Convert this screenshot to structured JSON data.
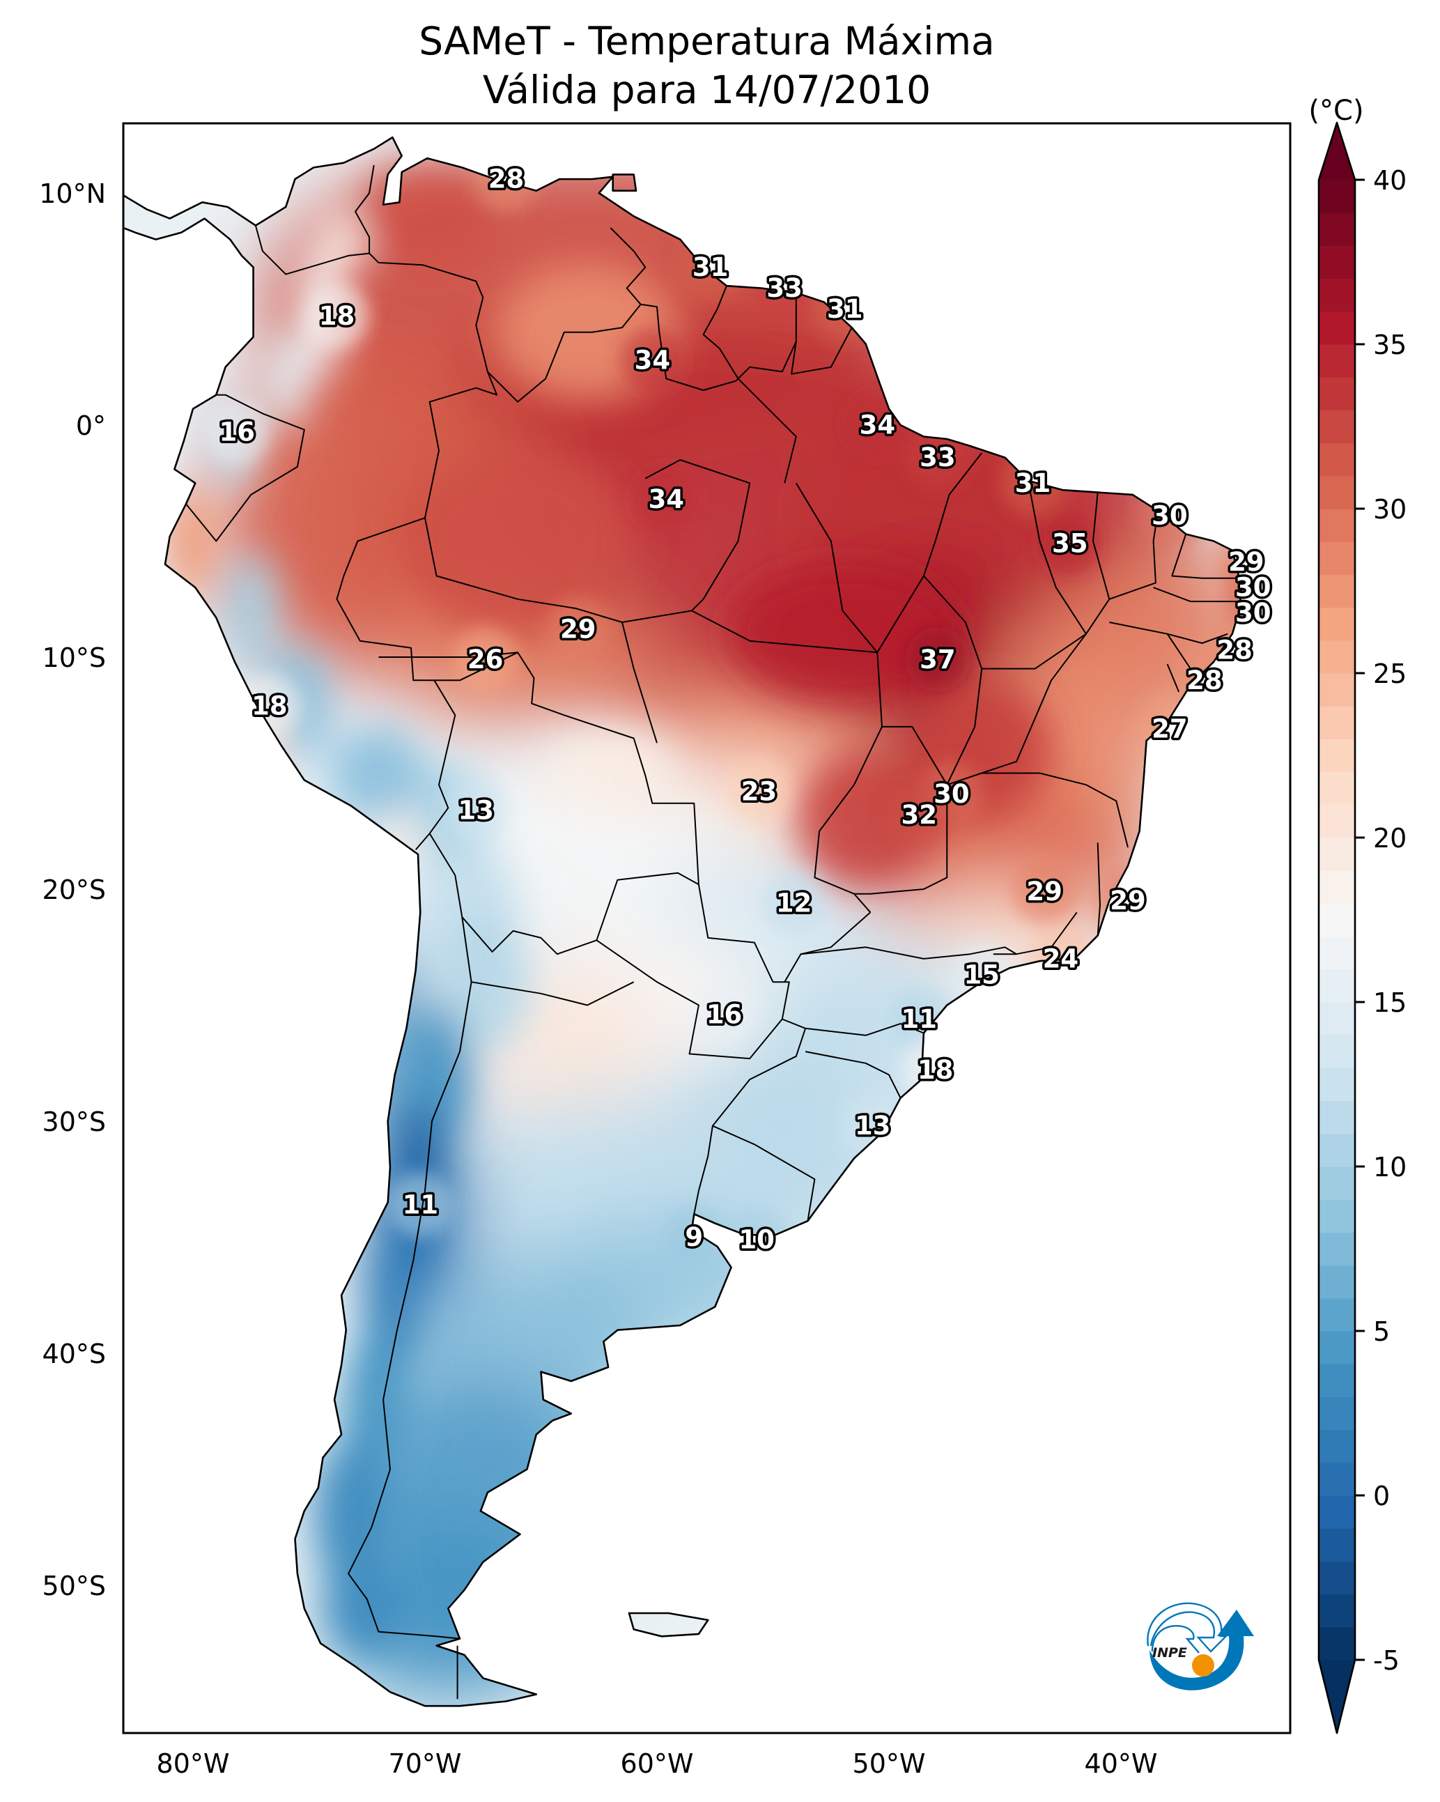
{
  "title": {
    "line1": "SAMeT - Temperatura Máxima",
    "line2": "Válida para 14/07/2010"
  },
  "chart_data": {
    "type": "heatmap",
    "title": "SAMeT - Temperatura Máxima",
    "subtitle": "Válida para 14/07/2010",
    "variable": "Temperatura Máxima",
    "units": "(°C)",
    "xlabel": "",
    "ylabel": "",
    "xlim_lon": [
      -83,
      -32.7
    ],
    "ylim_lat": [
      -56.4,
      13
    ],
    "x_ticks": [
      {
        "value": -80,
        "label": "80°W"
      },
      {
        "value": -70,
        "label": "70°W"
      },
      {
        "value": -60,
        "label": "60°W"
      },
      {
        "value": -50,
        "label": "50°W"
      },
      {
        "value": -40,
        "label": "40°W"
      }
    ],
    "y_ticks": [
      {
        "value": 10,
        "label": "10°N"
      },
      {
        "value": 0,
        "label": "0°"
      },
      {
        "value": -10,
        "label": "10°S"
      },
      {
        "value": -20,
        "label": "20°S"
      },
      {
        "value": -30,
        "label": "30°S"
      },
      {
        "value": -40,
        "label": "40°S"
      },
      {
        "value": -50,
        "label": "50°S"
      }
    ],
    "colorbar": {
      "label": "(°C)",
      "min": -5,
      "max": 40,
      "extend": "both",
      "colormap": "RdBu_r",
      "ticks": [
        {
          "value": 40,
          "label": "40"
        },
        {
          "value": 35,
          "label": "35"
        },
        {
          "value": 30,
          "label": "30"
        },
        {
          "value": 25,
          "label": "25"
        },
        {
          "value": 20,
          "label": "20"
        },
        {
          "value": 15,
          "label": "15"
        },
        {
          "value": 10,
          "label": "10"
        },
        {
          "value": 5,
          "label": "5"
        },
        {
          "value": 0,
          "label": "0"
        },
        {
          "value": -5,
          "label": "-5"
        }
      ],
      "colors": [
        "#053061",
        "#2166ac",
        "#4393c3",
        "#92c5de",
        "#d1e5f0",
        "#f7f7f7",
        "#fddbc7",
        "#f4a582",
        "#d6604d",
        "#b2182b",
        "#67001f"
      ]
    },
    "point_labels": [
      {
        "lon": -66.5,
        "lat": 10.6,
        "value": 28
      },
      {
        "lon": -57.7,
        "lat": 6.8,
        "value": 31
      },
      {
        "lon": -54.5,
        "lat": 5.9,
        "value": 33
      },
      {
        "lon": -51.9,
        "lat": 5.0,
        "value": 31
      },
      {
        "lon": -73.8,
        "lat": 4.7,
        "value": 18
      },
      {
        "lon": -60.2,
        "lat": 2.8,
        "value": 34
      },
      {
        "lon": -78.1,
        "lat": -0.3,
        "value": 16
      },
      {
        "lon": -50.5,
        "lat": 0.0,
        "value": 34
      },
      {
        "lon": -47.9,
        "lat": -1.4,
        "value": 33
      },
      {
        "lon": -43.8,
        "lat": -2.5,
        "value": 31
      },
      {
        "lon": -59.6,
        "lat": -3.2,
        "value": 34
      },
      {
        "lon": -37.9,
        "lat": -3.9,
        "value": 30
      },
      {
        "lon": -42.2,
        "lat": -5.1,
        "value": 35
      },
      {
        "lon": -34.6,
        "lat": -5.9,
        "value": 29
      },
      {
        "lon": -34.3,
        "lat": -7.0,
        "value": 30
      },
      {
        "lon": -34.3,
        "lat": -8.1,
        "value": 30
      },
      {
        "lon": -63.4,
        "lat": -8.8,
        "value": 29
      },
      {
        "lon": -35.1,
        "lat": -9.7,
        "value": 28
      },
      {
        "lon": -67.4,
        "lat": -10.1,
        "value": 26
      },
      {
        "lon": -47.9,
        "lat": -10.1,
        "value": 37
      },
      {
        "lon": -36.4,
        "lat": -11.0,
        "value": 28
      },
      {
        "lon": -76.7,
        "lat": -12.1,
        "value": 18
      },
      {
        "lon": -37.9,
        "lat": -13.1,
        "value": 27
      },
      {
        "lon": -55.6,
        "lat": -15.8,
        "value": 23
      },
      {
        "lon": -47.3,
        "lat": -15.9,
        "value": 30
      },
      {
        "lon": -67.8,
        "lat": -16.6,
        "value": 13
      },
      {
        "lon": -48.7,
        "lat": -16.8,
        "value": 32
      },
      {
        "lon": -43.3,
        "lat": -20.1,
        "value": 29
      },
      {
        "lon": -54.1,
        "lat": -20.6,
        "value": 12
      },
      {
        "lon": -39.7,
        "lat": -20.5,
        "value": 29
      },
      {
        "lon": -42.6,
        "lat": -23.0,
        "value": 24
      },
      {
        "lon": -46.0,
        "lat": -23.7,
        "value": 15
      },
      {
        "lon": -57.1,
        "lat": -25.4,
        "value": 16
      },
      {
        "lon": -48.7,
        "lat": -25.6,
        "value": 11
      },
      {
        "lon": -48.0,
        "lat": -27.8,
        "value": 18
      },
      {
        "lon": -50.7,
        "lat": -30.2,
        "value": 13
      },
      {
        "lon": -70.2,
        "lat": -33.6,
        "value": 11
      },
      {
        "lon": -58.4,
        "lat": -35.0,
        "value": 9
      },
      {
        "lon": -55.7,
        "lat": -35.1,
        "value": 10
      }
    ]
  },
  "logo": {
    "name": "INPE",
    "colors": {
      "blue": "#0077b8",
      "orange": "#f39200",
      "text": "#1a1a1a"
    }
  }
}
